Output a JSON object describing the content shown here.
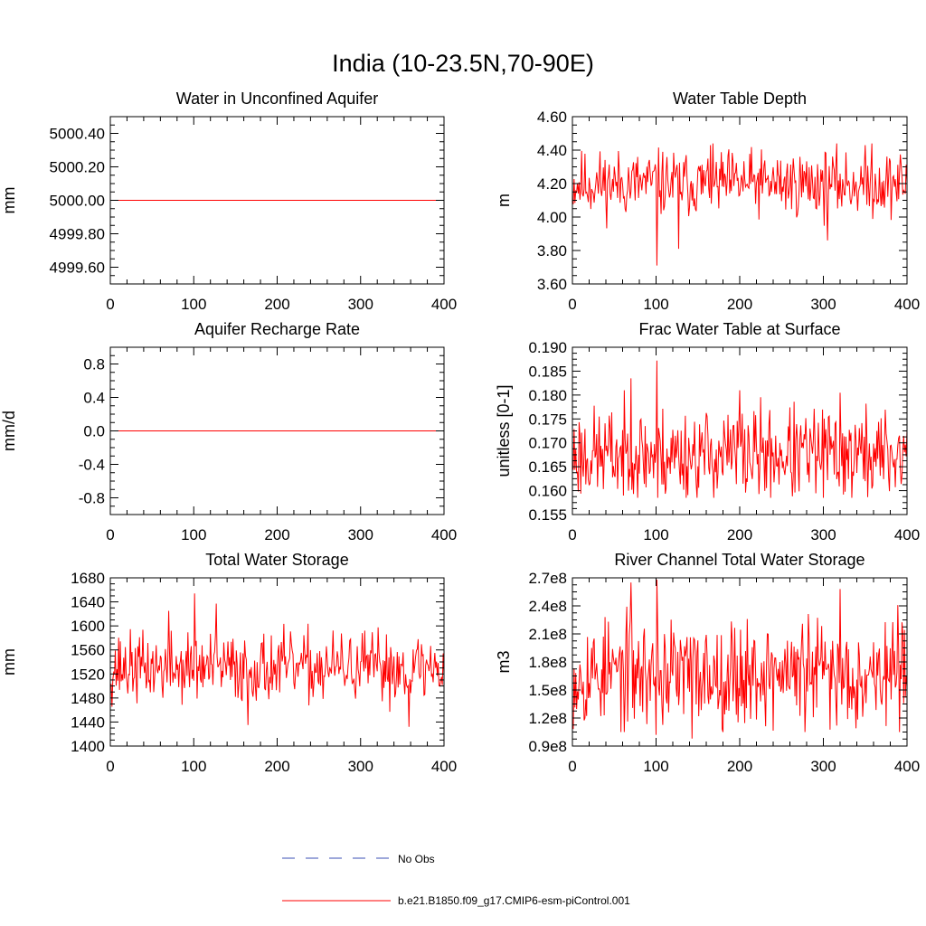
{
  "title": "India (10-23.5N,70-90E)",
  "colors": {
    "model_line": "#ff0000",
    "obs_line": "#3b4fb4",
    "axis": "#000000"
  },
  "legend": {
    "entries": [
      {
        "label": "No Obs",
        "style": "dashed",
        "color": "#3b4fb4"
      },
      {
        "label": "b.e21.B1850.f09_g17.CMIP6-esm-piControl.001",
        "style": "solid",
        "color": "#ff0000"
      }
    ]
  },
  "chart_data": [
    {
      "type": "line",
      "title": "Water in Unconfined Aquifer",
      "ylabel": "mm",
      "xlim": [
        0,
        400
      ],
      "ylim": [
        4999.5,
        5000.5
      ],
      "xticks": [
        0,
        100,
        200,
        300,
        400
      ],
      "xtick_labels": [
        "0",
        "100",
        "200",
        "300",
        "400"
      ],
      "yticks": [
        4999.6,
        4999.8,
        5000.0,
        5000.2,
        5000.4
      ],
      "ytick_labels": [
        "4999.60",
        "4999.80",
        "5000.00",
        "5000.20",
        "5000.40"
      ],
      "series": [
        {
          "name": "b.e21.B1850.f09_g17.CMIP6-esm-piControl.001",
          "generator": "constant",
          "x_start": 1,
          "x_end": 400,
          "value": 5000.0
        }
      ]
    },
    {
      "type": "line",
      "title": "Water Table Depth",
      "ylabel": "m",
      "xlim": [
        0,
        400
      ],
      "ylim": [
        3.6,
        4.6
      ],
      "xticks": [
        0,
        100,
        200,
        300,
        400
      ],
      "xtick_labels": [
        "0",
        "100",
        "200",
        "300",
        "400"
      ],
      "yticks": [
        3.6,
        3.8,
        4.0,
        4.2,
        4.4,
        4.6
      ],
      "ytick_labels": [
        "3.60",
        "3.80",
        "4.00",
        "4.20",
        "4.40",
        "4.60"
      ],
      "series": [
        {
          "name": "b.e21.B1850.f09_g17.CMIP6-esm-piControl.001",
          "generator": "noise",
          "seed": 11,
          "x_start": 1,
          "x_end": 400,
          "mean": 4.2,
          "amplitude": 0.13,
          "min": 3.85,
          "max": 4.44,
          "spikes": [
            {
              "x": 101,
              "y": 3.71
            },
            {
              "x": 127,
              "y": 3.81
            },
            {
              "x": 165,
              "y": 4.43
            },
            {
              "x": 358,
              "y": 4.44
            },
            {
              "x": 305,
              "y": 3.86
            }
          ]
        }
      ]
    },
    {
      "type": "line",
      "title": "Aquifer Recharge Rate",
      "ylabel": "mm/d",
      "xlim": [
        0,
        400
      ],
      "ylim": [
        -1.0,
        1.0
      ],
      "xticks": [
        0,
        100,
        200,
        300,
        400
      ],
      "xtick_labels": [
        "0",
        "100",
        "200",
        "300",
        "400"
      ],
      "yticks": [
        -0.8,
        -0.4,
        0.0,
        0.4,
        0.8
      ],
      "ytick_labels": [
        "-0.8",
        "-0.4",
        "0.0",
        "0.4",
        "0.8"
      ],
      "series": [
        {
          "name": "b.e21.B1850.f09_g17.CMIP6-esm-piControl.001",
          "generator": "constant",
          "x_start": 1,
          "x_end": 400,
          "value": 0.0
        }
      ]
    },
    {
      "type": "line",
      "title": "Frac Water Table at Surface",
      "ylabel": "unitless [0-1]",
      "xlim": [
        0,
        400
      ],
      "ylim": [
        0.155,
        0.19
      ],
      "xticks": [
        0,
        100,
        200,
        300,
        400
      ],
      "xtick_labels": [
        "0",
        "100",
        "200",
        "300",
        "400"
      ],
      "yticks": [
        0.155,
        0.16,
        0.165,
        0.17,
        0.175,
        0.18,
        0.185,
        0.19
      ],
      "ytick_labels": [
        "0.155",
        "0.160",
        "0.165",
        "0.170",
        "0.175",
        "0.180",
        "0.185",
        "0.190"
      ],
      "series": [
        {
          "name": "b.e21.B1850.f09_g17.CMIP6-esm-piControl.001",
          "generator": "noise",
          "seed": 23,
          "x_start": 1,
          "x_end": 400,
          "mean": 0.1675,
          "amplitude": 0.0065,
          "min": 0.1585,
          "max": 0.181,
          "spikes": [
            {
              "x": 70,
              "y": 0.1835
            },
            {
              "x": 101,
              "y": 0.1872
            },
            {
              "x": 102,
              "y": 0.1585
            },
            {
              "x": 200,
              "y": 0.181
            },
            {
              "x": 320,
              "y": 0.1805
            }
          ]
        }
      ]
    },
    {
      "type": "line",
      "title": "Total Water Storage",
      "ylabel": "mm",
      "xlim": [
        0,
        400
      ],
      "ylim": [
        1400,
        1680
      ],
      "xticks": [
        0,
        100,
        200,
        300,
        400
      ],
      "xtick_labels": [
        "0",
        "100",
        "200",
        "300",
        "400"
      ],
      "yticks": [
        1400,
        1440,
        1480,
        1520,
        1560,
        1600,
        1640,
        1680
      ],
      "ytick_labels": [
        "1400",
        "1440",
        "1480",
        "1520",
        "1560",
        "1600",
        "1640",
        "1680"
      ],
      "series": [
        {
          "name": "b.e21.B1850.f09_g17.CMIP6-esm-piControl.001",
          "generator": "noise",
          "seed": 37,
          "x_start": 1,
          "x_end": 400,
          "mean": 1530,
          "amplitude": 38,
          "min": 1445,
          "max": 1610,
          "spikes": [
            {
              "x": 101,
              "y": 1654
            },
            {
              "x": 127,
              "y": 1637
            },
            {
              "x": 165,
              "y": 1435
            },
            {
              "x": 358,
              "y": 1432
            },
            {
              "x": 70,
              "y": 1625
            }
          ]
        }
      ]
    },
    {
      "type": "line",
      "title": "River Channel Total Water Storage",
      "ylabel": "m3",
      "xlim": [
        0,
        400
      ],
      "ylim": [
        90000000,
        270000000
      ],
      "xticks": [
        0,
        100,
        200,
        300,
        400
      ],
      "xtick_labels": [
        "0",
        "100",
        "200",
        "300",
        "400"
      ],
      "yticks": [
        90000000,
        120000000,
        150000000,
        180000000,
        210000000,
        240000000,
        270000000
      ],
      "ytick_labels": [
        "0.9e8",
        "1.2e8",
        "1.5e8",
        "1.8e8",
        "2.1e8",
        "2.4e8",
        "2.7e8"
      ],
      "series": [
        {
          "name": "b.e21.B1850.f09_g17.CMIP6-esm-piControl.001",
          "generator": "noise",
          "seed": 53,
          "x_start": 1,
          "x_end": 400,
          "mean": 168000000,
          "amplitude": 38000000,
          "min": 105000000,
          "max": 245000000,
          "spikes": [
            {
              "x": 70,
              "y": 265000000
            },
            {
              "x": 101,
              "y": 268000000
            },
            {
              "x": 100,
              "y": 102000000
            },
            {
              "x": 143,
              "y": 98000000
            },
            {
              "x": 320,
              "y": 258000000
            }
          ]
        }
      ]
    }
  ]
}
